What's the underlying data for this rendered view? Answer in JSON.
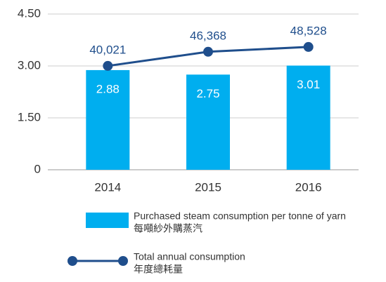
{
  "chart_data": {
    "type": "bar",
    "categories": [
      "2014",
      "2015",
      "2016"
    ],
    "series": [
      {
        "name": "Purchased steam consumption per tonne of yarn",
        "name_zh": "每噸紗外購蒸汽",
        "color": "#00aeef",
        "values": [
          2.88,
          2.75,
          3.01
        ]
      },
      {
        "name": "Total annual consumption",
        "name_zh": "年度總耗量",
        "color": "#1f4e8c",
        "type": "line",
        "axis": "y2",
        "values": [
          40021,
          46368,
          48528
        ],
        "value_labels": [
          "40,021",
          "46,368",
          "48,528"
        ]
      }
    ],
    "ylim": [
      0,
      4.5
    ],
    "yticks": [
      {
        "value": 0,
        "label": "0"
      },
      {
        "value": 1.5,
        "label": "1.50"
      },
      {
        "value": 3,
        "label": "3.00"
      },
      {
        "value": 4.5,
        "label": "4.50"
      }
    ],
    "y2lim": [
      -6600,
      63300
    ],
    "grid": true
  }
}
